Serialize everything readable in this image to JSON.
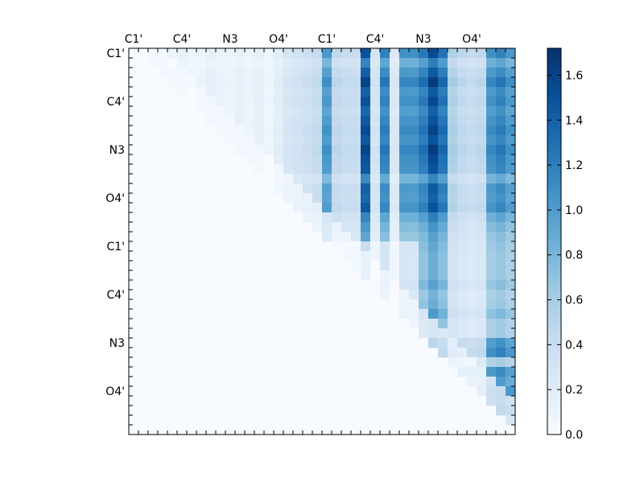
{
  "chart_data": {
    "type": "heatmap",
    "title": "",
    "xlabel": "",
    "ylabel": "",
    "size": 40,
    "x_tick_labels": [
      "C1'",
      "C4'",
      "N3",
      "O4'",
      "C1'",
      "C4'",
      "N3",
      "O4'"
    ],
    "y_tick_labels": [
      "C1'",
      "C4'",
      "N3",
      "O4'",
      "C1'",
      "C4'",
      "N3",
      "O4'"
    ],
    "colormap": "Blues",
    "colorbar": {
      "min": 0.0,
      "max": 1.72,
      "ticks": [
        "0.0",
        "0.2",
        "0.4",
        "0.6",
        "0.8",
        "1.0",
        "1.2",
        "1.4",
        "1.6"
      ]
    },
    "column_profiles": [
      0,
      0.05,
      0.15,
      0.12,
      0.1,
      0.12,
      0.08,
      0.1,
      0.14,
      0.12,
      0.1,
      0.14,
      0.1,
      0.14,
      0.08,
      0.18,
      0.28,
      0.32,
      0.36,
      0.42,
      1.0,
      0.45,
      0.4,
      0.4,
      1.45,
      0.3,
      1.15,
      0.25,
      1.05,
      1.05,
      1.2,
      1.5,
      1.25,
      0.55,
      0.45,
      0.4,
      0.45,
      1.05,
      1.15,
      1.0
    ],
    "row_profiles": [
      1.05,
      0.7,
      0.95,
      1.15,
      0.95,
      1.05,
      0.9,
      1.0,
      1.1,
      1.0,
      1.15,
      1.05,
      1.0,
      0.65,
      0.95,
      0.9,
      1.0,
      0.7,
      0.55,
      0.45,
      0.4,
      0.35,
      0.35,
      0.35,
      0.45,
      0.3,
      0.35,
      0.5,
      0.3,
      0.3,
      0.9,
      1.05,
      0.25,
      0.95,
      0.8,
      1.05,
      1.0,
      1.15,
      0.7,
      0.4
    ]
  }
}
